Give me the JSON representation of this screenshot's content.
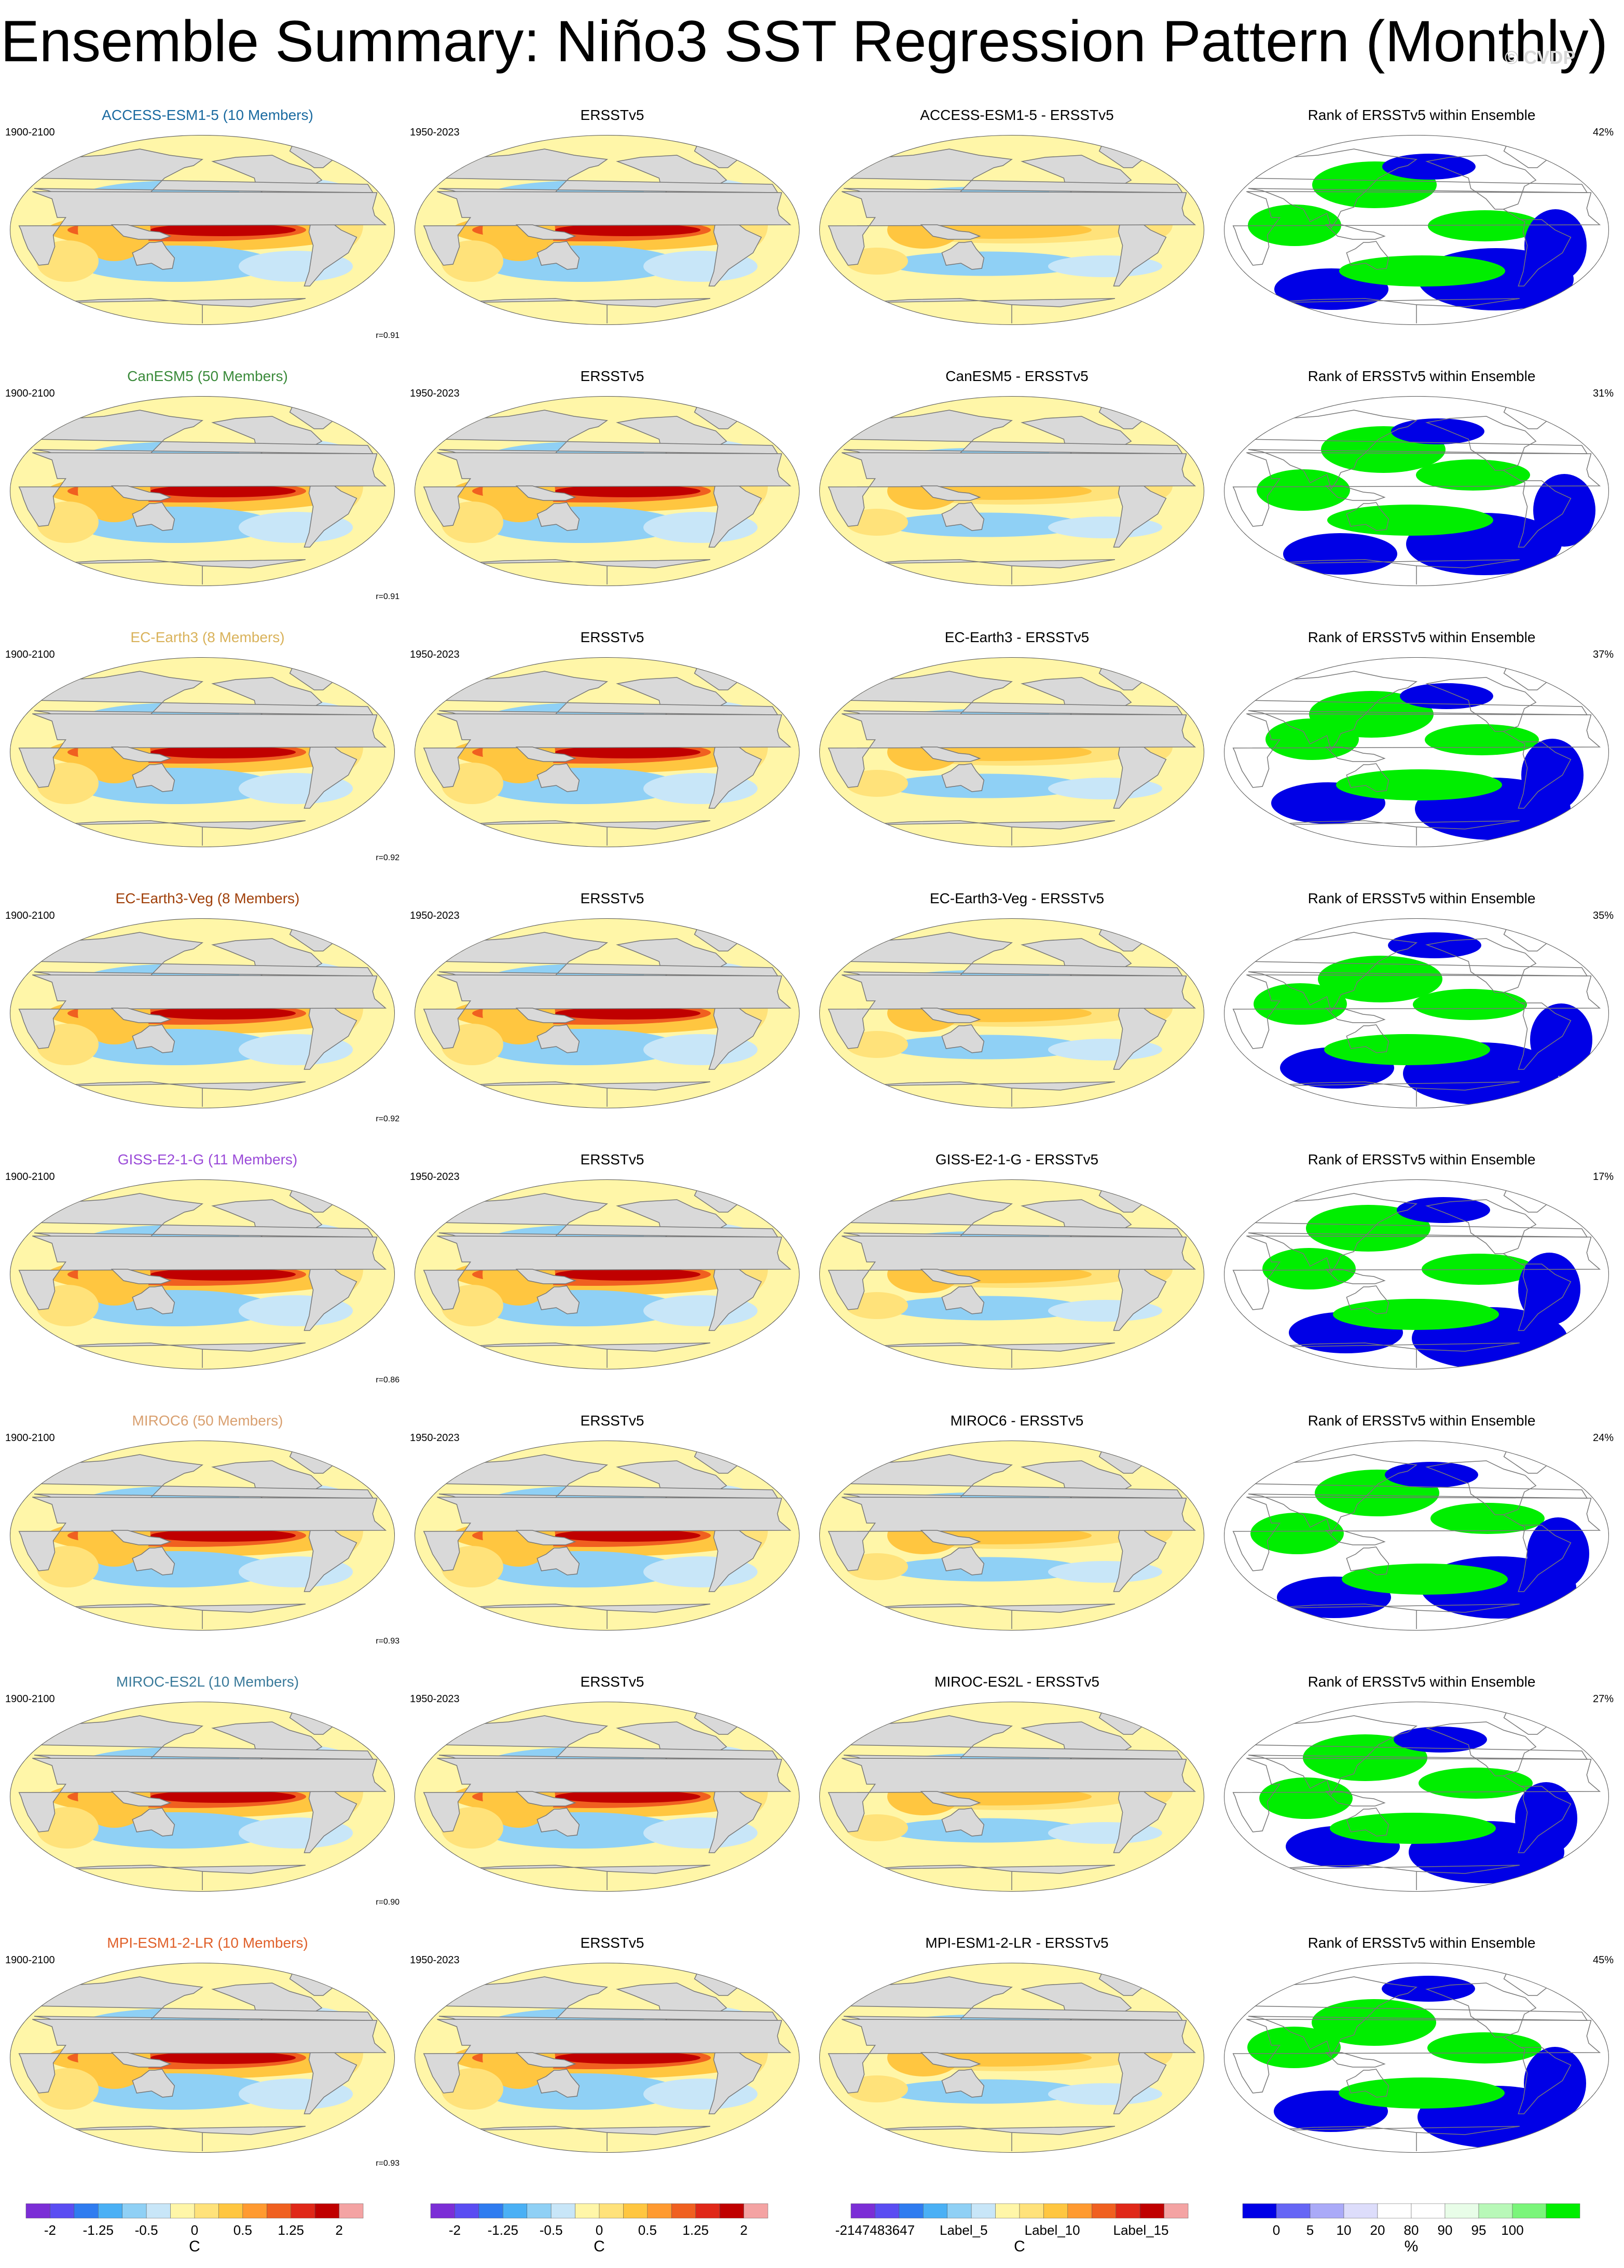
{
  "title": "Ensemble Summary: Niño3 SST Regression Pattern (Monthly)",
  "watermark": "© CVDP",
  "colors": {
    "ocean_neutral": "#ffffff",
    "land": "#d9d9d9",
    "ramp": [
      "#7b2ed6",
      "#5a4df2",
      "#2f7cf0",
      "#4ab0f5",
      "#8fd0f5",
      "#c8e6f8",
      "#fff6a8",
      "#ffe27a",
      "#ffc640",
      "#ff9a30",
      "#f06020",
      "#e02818",
      "#c00000",
      "#f4a3a3"
    ],
    "rank_ramp": [
      "#0000e6",
      "#6666f5",
      "#aaaaf8",
      "#ddddfb",
      "#ffffff",
      "#ffffff",
      "#e8fde8",
      "#b8f8b8",
      "#7af57a",
      "#00ee00"
    ]
  },
  "rows": [
    {
      "model_title": "ACCESS-ESM1-5 (10 Members)",
      "model_color": "#1a6aa0",
      "model_years": "1900-2100",
      "obs_title": "ERSSTv5",
      "obs_years": "1950-2023",
      "diff_title": "ACCESS-ESM1-5 - ERSSTv5",
      "rank_title": "Rank of ERSSTv5 within Ensemble",
      "rank_pct": "42%",
      "corr": "r=0.91"
    },
    {
      "model_title": "CanESM5 (50 Members)",
      "model_color": "#3a8a3a",
      "model_years": "1900-2100",
      "obs_title": "ERSSTv5",
      "obs_years": "1950-2023",
      "diff_title": "CanESM5 - ERSSTv5",
      "rank_title": "Rank of ERSSTv5 within Ensemble",
      "rank_pct": "31%",
      "corr": "r=0.91"
    },
    {
      "model_title": "EC-Earth3 (8 Members)",
      "model_color": "#d9b25a",
      "model_years": "1900-2100",
      "obs_title": "ERSSTv5",
      "obs_years": "1950-2023",
      "diff_title": "EC-Earth3 - ERSSTv5",
      "rank_title": "Rank of ERSSTv5 within Ensemble",
      "rank_pct": "37%",
      "corr": "r=0.92"
    },
    {
      "model_title": "EC-Earth3-Veg (8 Members)",
      "model_color": "#a0400a",
      "model_years": "1900-2100",
      "obs_title": "ERSSTv5",
      "obs_years": "1950-2023",
      "diff_title": "EC-Earth3-Veg - ERSSTv5",
      "rank_title": "Rank of ERSSTv5 within Ensemble",
      "rank_pct": "35%",
      "corr": "r=0.92"
    },
    {
      "model_title": "GISS-E2-1-G (11 Members)",
      "model_color": "#9a4ad8",
      "model_years": "1900-2100",
      "obs_title": "ERSSTv5",
      "obs_years": "1950-2023",
      "diff_title": "GISS-E2-1-G - ERSSTv5",
      "rank_title": "Rank of ERSSTv5 within Ensemble",
      "rank_pct": "17%",
      "corr": "r=0.86"
    },
    {
      "model_title": "MIROC6 (50 Members)",
      "model_color": "#d9a070",
      "model_years": "1900-2100",
      "obs_title": "ERSSTv5",
      "obs_years": "1950-2023",
      "diff_title": "MIROC6 - ERSSTv5",
      "rank_title": "Rank of ERSSTv5 within Ensemble",
      "rank_pct": "24%",
      "corr": "r=0.93"
    },
    {
      "model_title": "MIROC-ES2L (10 Members)",
      "model_color": "#3a7a9a",
      "model_years": "1900-2100",
      "obs_title": "ERSSTv5",
      "obs_years": "1950-2023",
      "diff_title": "MIROC-ES2L - ERSSTv5",
      "rank_title": "Rank of ERSSTv5 within Ensemble",
      "rank_pct": "27%",
      "corr": "r=0.90"
    },
    {
      "model_title": "MPI-ESM1-2-LR (10 Members)",
      "model_color": "#e0602a",
      "model_years": "1900-2100",
      "obs_title": "ERSSTv5",
      "obs_years": "1950-2023",
      "diff_title": "MPI-ESM1-2-LR - ERSSTv5",
      "rank_title": "Rank of ERSSTv5 within Ensemble",
      "rank_pct": "45%",
      "corr": "r=0.93"
    }
  ],
  "colorbars": [
    {
      "labels": [
        "-2",
        "-1.25",
        "-0.5",
        "0",
        "0.5",
        "1.25",
        "2"
      ],
      "unit": "C",
      "kind": "sst"
    },
    {
      "labels": [
        "-2",
        "-1.25",
        "-0.5",
        "0",
        "0.5",
        "1.25",
        "2"
      ],
      "unit": "C",
      "kind": "sst"
    },
    {
      "labels": [
        "-2147483647",
        "Label_5",
        "Label_10",
        "Label_15"
      ],
      "unit": "C",
      "kind": "sst"
    },
    {
      "labels": [
        "0",
        "5",
        "10",
        "20",
        "80",
        "90",
        "95",
        "100"
      ],
      "unit": "%",
      "kind": "rank"
    }
  ]
}
